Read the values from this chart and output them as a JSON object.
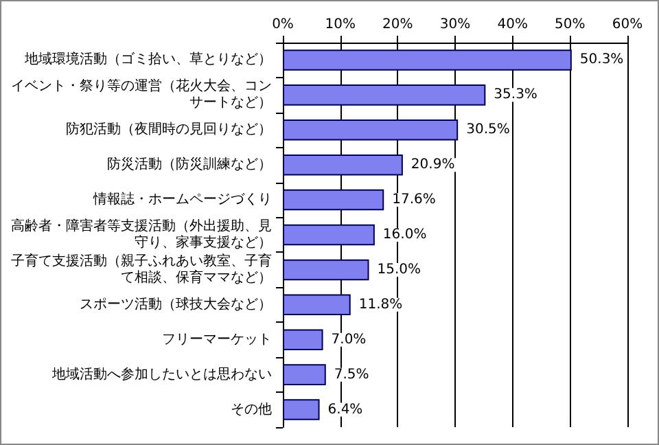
{
  "chart_data": {
    "type": "bar",
    "orientation": "horizontal",
    "categories": [
      "地域環境活動（ゴミ拾い、草とりなど）",
      "イベント・祭り等の運営（花火大会、コンサートなど）",
      "防犯活動（夜間時の見回りなど）",
      "防災活動（防災訓練など）",
      "情報誌・ホームページづくり",
      "高齢者・障害者等支援活動（外出援助、見守り、家事支援など）",
      "子育て支援活動（親子ふれあい教室、子育て相談、保育ママなど）",
      "スポーツ活動（球技大会など）",
      "フリーマーケット",
      "地域活動へ参加したいとは思わない",
      "その他"
    ],
    "values": [
      50.3,
      35.3,
      30.5,
      20.9,
      17.6,
      16.0,
      15.0,
      11.8,
      7.0,
      7.5,
      6.4
    ],
    "value_labels": [
      "50.3%",
      "35.3%",
      "30.5%",
      "20.9%",
      "17.6%",
      "16.0%",
      "15.0%",
      "11.8%",
      "7.0%",
      "7.5%",
      "6.4%"
    ],
    "color": "#8080f0",
    "xlim": [
      0,
      60
    ],
    "xticks": [
      {
        "value": 0,
        "label": "0%"
      },
      {
        "value": 10,
        "label": "10%"
      },
      {
        "value": 20,
        "label": "20%"
      },
      {
        "value": 30,
        "label": "30%"
      },
      {
        "value": 40,
        "label": "40%"
      },
      {
        "value": 50,
        "label": "50%"
      },
      {
        "value": 60,
        "label": "60%"
      }
    ],
    "grid": "x"
  }
}
